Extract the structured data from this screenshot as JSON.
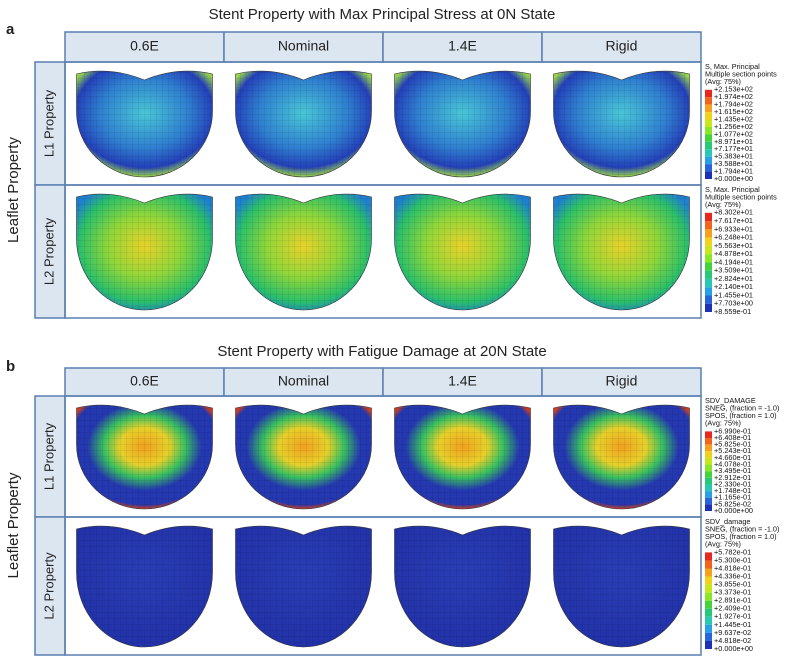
{
  "panels": [
    {
      "letter": "a",
      "title": "Stent Property with Max Principal Stress at 0N State",
      "row_header": "Leaflet Property",
      "columns": [
        "0.6E",
        "Nominal",
        "1.4E",
        "Rigid"
      ],
      "rows": [
        {
          "label": "L1 Property",
          "legend": {
            "header": [
              "S, Max. Principal",
              "Multiple section points",
              "(Avg: 75%)"
            ],
            "values": [
              "+2.153e+02",
              "+1.974e+02",
              "+1.794e+02",
              "+1.615e+02",
              "+1.435e+02",
              "+1.256e+02",
              "+1.077e+02",
              "+8.971e+01",
              "+7.177e+01",
              "+5.383e+01",
              "+3.588e+01",
              "+1.794e+01",
              "+0.000e+00"
            ]
          }
        },
        {
          "label": "L2 Property",
          "legend": {
            "header": [
              "S, Max. Principal",
              "Multiple section points",
              "(Avg: 75%)"
            ],
            "values": [
              "+8.302e+01",
              "+7.617e+01",
              "+6.933e+01",
              "+6.248e+01",
              "+5.563e+01",
              "+4.878e+01",
              "+4.194e+01",
              "+3.509e+01",
              "+2.824e+01",
              "+2.140e+01",
              "+1.455e+01",
              "+7.703e+00",
              "+8.559e-01"
            ]
          }
        }
      ]
    },
    {
      "letter": "b",
      "title": "Stent Property with Fatigue Damage at 20N State",
      "row_header": "Leaflet Property",
      "columns": [
        "0.6E",
        "Nominal",
        "1.4E",
        "Rigid"
      ],
      "rows": [
        {
          "label": "L1 Property",
          "legend": {
            "header": [
              "SDV_DAMAGE",
              "SNEG, (fraction = -1.0)",
              "SPOS, (fraction = 1.0)",
              "(Avg: 75%)"
            ],
            "values": [
              "+6.990e-01",
              "+6.408e-01",
              "+5.825e-01",
              "+5.243e-01",
              "+4.660e-01",
              "+4.078e-01",
              "+3.495e-01",
              "+2.912e-01",
              "+2.330e-01",
              "+1.748e-01",
              "+1.165e-01",
              "+5.825e-02",
              "+0.000e+00"
            ]
          }
        },
        {
          "label": "L2 Property",
          "legend": {
            "header": [
              "SDV_damage",
              "SNEG, (fraction = -1.0)",
              "SPOS, (fraction = 1.0)",
              "(Avg: 75%)"
            ],
            "values": [
              "+5.782e-01",
              "+5.300e-01",
              "+4.818e-01",
              "+4.336e-01",
              "+3.855e-01",
              "+3.373e-01",
              "+2.891e-01",
              "+2.409e-01",
              "+1.927e-01",
              "+1.445e-01",
              "+9.637e-02",
              "+4.818e-02",
              "+0.000e+00"
            ]
          }
        }
      ]
    }
  ]
}
